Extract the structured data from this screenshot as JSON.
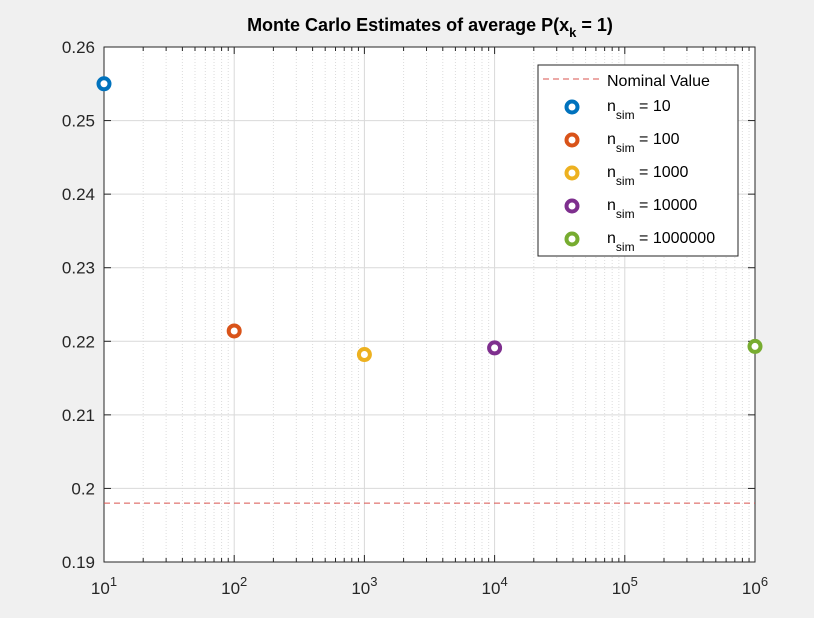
{
  "chart_data": {
    "type": "scatter",
    "title": "Monte Carlo Estimates of average P(x",
    "title_subscript": "k",
    "title_suffix": " = 1)",
    "xlabel": "",
    "ylabel": "",
    "xscale": "log",
    "xlim": [
      10,
      1000000
    ],
    "ylim": [
      0.19,
      0.26
    ],
    "grid": true,
    "x_ticks": [
      10,
      100,
      1000,
      10000,
      100000,
      1000000
    ],
    "x_tick_base": "10",
    "x_tick_exponents": [
      "1",
      "2",
      "3",
      "4",
      "5",
      "6"
    ],
    "y_ticks": [
      0.19,
      0.2,
      0.21,
      0.22,
      0.23,
      0.24,
      0.25,
      0.26
    ],
    "y_tick_labels": [
      "0.19",
      "0.2",
      "0.21",
      "0.22",
      "0.23",
      "0.24",
      "0.25",
      "0.26"
    ],
    "nominal_value": 0.198,
    "nominal_label": "Nominal Value",
    "nominal_color": "#d9534f",
    "legend_position": "top-right",
    "series": [
      {
        "name_base": "n",
        "name_sub": "sim",
        "name_suffix": " = 10",
        "x": 10,
        "y": 0.255,
        "color": "#0072BD"
      },
      {
        "name_base": "n",
        "name_sub": "sim",
        "name_suffix": " = 100",
        "x": 100,
        "y": 0.2214,
        "color": "#D95319"
      },
      {
        "name_base": "n",
        "name_sub": "sim",
        "name_suffix": " = 1000",
        "x": 1000,
        "y": 0.2182,
        "color": "#EDB120"
      },
      {
        "name_base": "n",
        "name_sub": "sim",
        "name_suffix": " = 10000",
        "x": 10000,
        "y": 0.2191,
        "color": "#7E2F8E"
      },
      {
        "name_base": "n",
        "name_sub": "sim",
        "name_suffix": " = 1000000",
        "x": 1000000,
        "y": 0.2193,
        "color": "#77AC30"
      }
    ]
  }
}
